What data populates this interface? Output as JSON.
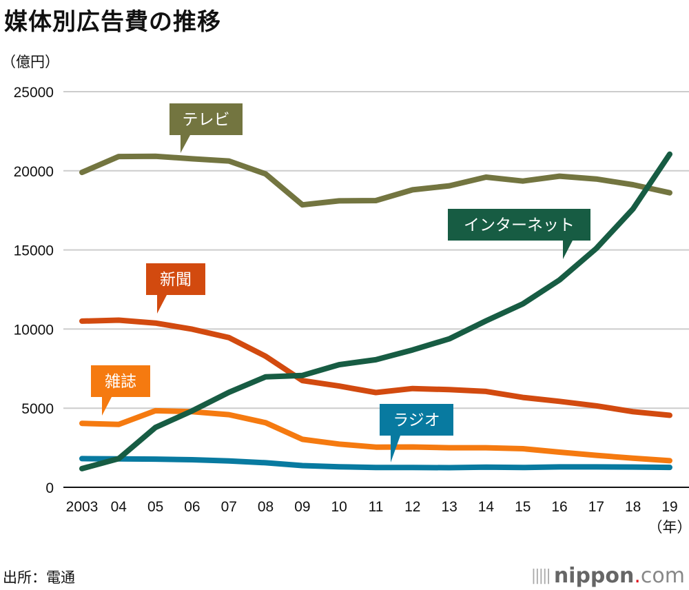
{
  "title": "媒体別広告費の推移",
  "unit_label": "（億円）",
  "source": "出所：電通",
  "logo": {
    "name": "nippon",
    "dot": ".",
    "suffix": "com"
  },
  "chart_data": {
    "type": "line",
    "title": "媒体別広告費の推移",
    "xlabel": "（年）",
    "ylabel": "（億円）",
    "ylim": [
      0,
      25000
    ],
    "yticks": [
      0,
      5000,
      10000,
      15000,
      20000,
      25000
    ],
    "grid": true,
    "categories": [
      "2003",
      "04",
      "05",
      "06",
      "07",
      "08",
      "09",
      "10",
      "11",
      "12",
      "13",
      "14",
      "15",
      "16",
      "17",
      "18",
      "19"
    ],
    "series": [
      {
        "name": "テレビ",
        "color": "#737540",
        "values": [
          19900,
          20900,
          20920,
          20760,
          20620,
          19800,
          17850,
          18100,
          18120,
          18800,
          19050,
          19600,
          19350,
          19660,
          19480,
          19120,
          18610
        ]
      },
      {
        "name": "インターネット",
        "color": "#175c43",
        "values": [
          1180,
          1810,
          3780,
          4830,
          6000,
          6980,
          7070,
          7750,
          8060,
          8680,
          9380,
          10520,
          11590,
          13100,
          15090,
          17590,
          21050
        ]
      },
      {
        "name": "新聞",
        "color": "#d24a0f",
        "values": [
          10500,
          10560,
          10380,
          9990,
          9460,
          8280,
          6740,
          6400,
          5990,
          6240,
          6170,
          6060,
          5680,
          5430,
          5150,
          4780,
          4550
        ]
      },
      {
        "name": "雑誌",
        "color": "#f57a10",
        "values": [
          4040,
          3970,
          4840,
          4780,
          4590,
          4080,
          3030,
          2730,
          2540,
          2550,
          2500,
          2500,
          2440,
          2220,
          2020,
          1840,
          1680
        ]
      },
      {
        "name": "ラジオ",
        "color": "#087aa0",
        "values": [
          1810,
          1800,
          1780,
          1740,
          1670,
          1550,
          1370,
          1300,
          1250,
          1250,
          1240,
          1270,
          1250,
          1290,
          1290,
          1280,
          1260
        ]
      }
    ],
    "labels": [
      {
        "series": 0,
        "text": "テレビ"
      },
      {
        "series": 1,
        "text": "インターネット"
      },
      {
        "series": 2,
        "text": "新聞"
      },
      {
        "series": 3,
        "text": "雑誌"
      },
      {
        "series": 4,
        "text": "ラジオ"
      }
    ]
  }
}
